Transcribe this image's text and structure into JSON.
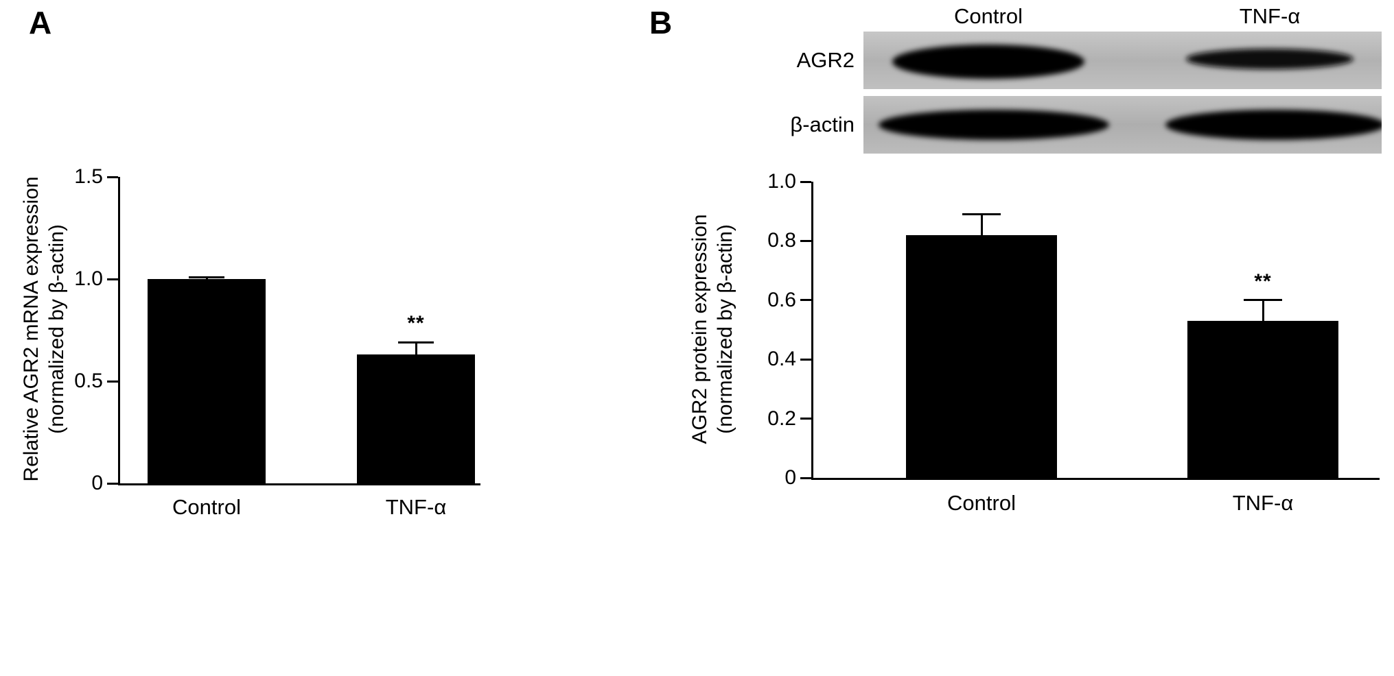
{
  "panels": {
    "a": {
      "label": "A"
    },
    "b": {
      "label": "B",
      "blot": {
        "columns": [
          "Control",
          "TNF-α"
        ],
        "rows": [
          "AGR2",
          "β-actin"
        ]
      }
    }
  },
  "chart_data": [
    {
      "type": "bar",
      "panel": "A",
      "title": "",
      "categories": [
        "Control",
        "TNF-α"
      ],
      "values": [
        1.0,
        0.63
      ],
      "errors": [
        0.01,
        0.06
      ],
      "sig_labels": [
        "",
        "**"
      ],
      "ylabel": "Relative AGR2 mRNA expression (normalized by β-actin)",
      "ylabel_lines": [
        "Relative AGR2 mRNA expression",
        "(normalized by β-actin)"
      ],
      "xlabel": "",
      "ylim": [
        0,
        1.5
      ],
      "ytick_values": [
        0,
        0.5,
        1.0,
        1.5
      ],
      "ytick_labels": [
        "0",
        "0.5",
        "1.0",
        "1.5"
      ],
      "bar_color": "#000000",
      "grid": false,
      "legend": false
    },
    {
      "type": "bar",
      "panel": "B",
      "title": "",
      "categories": [
        "Control",
        "TNF-α"
      ],
      "values": [
        0.82,
        0.53
      ],
      "errors": [
        0.07,
        0.07
      ],
      "sig_labels": [
        "",
        "**"
      ],
      "ylabel": "AGR2 protein expression (normalized by β-actin)",
      "ylabel_lines": [
        "AGR2 protein expression",
        "(normalized by β-actin)"
      ],
      "xlabel": "",
      "ylim": [
        0,
        1.0
      ],
      "ytick_values": [
        0,
        0.2,
        0.4,
        0.6,
        0.8,
        1.0
      ],
      "ytick_labels": [
        "0",
        "0.2",
        "0.4",
        "0.6",
        "0.8",
        "1.0"
      ],
      "bar_color": "#000000",
      "grid": false,
      "legend": false
    }
  ]
}
